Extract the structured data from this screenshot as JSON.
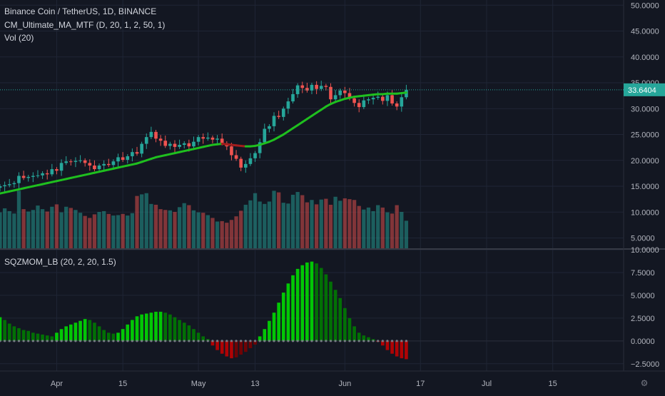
{
  "header": {
    "symbol_line": "Binance Coin / TetherUS, 1D, BINANCE",
    "indicator_ma": "CM_Ultimate_MA_MTF (D, 20, 1, 2, 50, 1)",
    "indicator_vol": "Vol (20)",
    "indicator_sqz": "SQZMOM_LB (20, 2, 20, 1.5)"
  },
  "colors": {
    "background": "#131722",
    "grid": "#1f2535",
    "up": "#26a69a",
    "down": "#ef5350",
    "ma_up": "#1fbf1f",
    "ma_down": "#a31d1d",
    "last_price_badge": "#26a69a",
    "sqz_lime": "#00e600",
    "sqz_green": "#008000",
    "sqz_red": "#cc0000",
    "sqz_maroon": "#800000"
  },
  "chart_data": [
    {
      "type": "candlestick",
      "title": "Binance Coin / TetherUS, 1D, BINANCE",
      "y_ticks": [
        "50.0000",
        "45.0000",
        "40.0000",
        "35.0000",
        "30.0000",
        "25.0000",
        "20.0000",
        "15.0000",
        "10.0000",
        "5.0000"
      ],
      "ylim": [
        3,
        51
      ],
      "last_price": "33.6404",
      "x_ticks": [
        {
          "label": "Apr",
          "day": 12
        },
        {
          "label": "15",
          "day": 26
        },
        {
          "label": "May",
          "day": 42
        },
        {
          "label": "13",
          "day": 54
        },
        {
          "label": "Jun",
          "day": 73
        },
        {
          "label": "17",
          "day": 89
        },
        {
          "label": "Jul",
          "day": 103
        },
        {
          "label": "15",
          "day": 117
        }
      ],
      "x_range": [
        0,
        132
      ],
      "ohlc_start_day": 0,
      "close": [
        15.0,
        15.2,
        15.4,
        15.6,
        17.0,
        16.6,
        16.8,
        17.0,
        17.1,
        17.5,
        17.3,
        18.3,
        18.0,
        19.5,
        19.8,
        19.7,
        19.9,
        20.0,
        19.5,
        19.0,
        18.3,
        19.0,
        19.3,
        19.1,
        19.8,
        20.6,
        20.1,
        20.8,
        21.6,
        21.3,
        23.2,
        24.5,
        25.5,
        24.2,
        23.8,
        22.8,
        23.2,
        22.6,
        23.0,
        23.3,
        22.7,
        23.6,
        24.5,
        24.2,
        24.4,
        24.0,
        24.2,
        23.3,
        22.7,
        21.0,
        20.3,
        18.6,
        19.3,
        20.4,
        21.4,
        23.5,
        26.1,
        26.6,
        28.6,
        28.4,
        30.0,
        31.4,
        32.8,
        34.5,
        34.0,
        33.5,
        34.6,
        33.8,
        34.4,
        34.2,
        31.8,
        32.6,
        33.5,
        33.0,
        32.0,
        31.1,
        30.3,
        31.6,
        31.8,
        32.1,
        32.3,
        31.5,
        32.6,
        31.0,
        30.4,
        32.2,
        33.6
      ],
      "volume": [
        9.0,
        10.0,
        9.3,
        8.7,
        14.4,
        9.8,
        9.2,
        9.6,
        10.7,
        9.8,
        9.2,
        10.4,
        11.0,
        9.0,
        10.4,
        10.1,
        9.6,
        8.9,
        8.1,
        7.6,
        8.5,
        9.1,
        9.3,
        8.6,
        8.2,
        8.3,
        8.6,
        8.2,
        8.8,
        13.1,
        13.5,
        13.8,
        11.1,
        10.9,
        9.8,
        9.6,
        9.5,
        9.1,
        10.3,
        11.3,
        10.8,
        9.5,
        9.0,
        8.9,
        8.3,
        7.6,
        6.7,
        6.8,
        6.4,
        7.1,
        8.0,
        9.4,
        10.9,
        12.0,
        13.8,
        11.7,
        11.1,
        11.7,
        14.4,
        14.0,
        11.4,
        11.2,
        13.4,
        14.1,
        13.3,
        11.5,
        12.1,
        11.0,
        12.2,
        12.4,
        10.9,
        12.9,
        11.9,
        12.5,
        12.3,
        12.1,
        10.6,
        9.7,
        10.2,
        9.3,
        10.8,
        10.2,
        9.0,
        8.7,
        10.8,
        9.1,
        6.9
      ],
      "ma": [
        13.6,
        13.8,
        14.0,
        14.2,
        14.4,
        14.6,
        14.8,
        15.0,
        15.2,
        15.4,
        15.6,
        15.8,
        16.0,
        16.2,
        16.4,
        16.6,
        16.8,
        17.0,
        17.2,
        17.4,
        17.6,
        17.8,
        18.0,
        18.2,
        18.4,
        18.6,
        18.8,
        19.0,
        19.2,
        19.4,
        19.7,
        20.0,
        20.3,
        20.6,
        20.8,
        21.0,
        21.2,
        21.4,
        21.6,
        21.8,
        22.0,
        22.2,
        22.4,
        22.6,
        22.8,
        23.0,
        23.1,
        23.2,
        23.1,
        23.0,
        22.9,
        22.8,
        22.7,
        22.7,
        22.8,
        23.0,
        23.3,
        23.6,
        24.0,
        24.5,
        25.0,
        25.6,
        26.2,
        26.8,
        27.4,
        28.0,
        28.6,
        29.2,
        29.8,
        30.4,
        30.9,
        31.3,
        31.6,
        31.9,
        32.1,
        32.3,
        32.4,
        32.5,
        32.6,
        32.7,
        32.8,
        32.8,
        32.9,
        32.9,
        32.9,
        33.0,
        33.1
      ],
      "ma_down_range": [
        47,
        52
      ]
    },
    {
      "type": "bar",
      "title": "SQZMOM_LB (20, 2, 20, 1.5)",
      "y_ticks": [
        "10.0000",
        "7.5000",
        "5.0000",
        "2.5000",
        "0.0000",
        "−2.5000"
      ],
      "ylim": [
        -3.3,
        10
      ],
      "start_day": 0,
      "values": [
        2.6,
        2.3,
        1.9,
        1.6,
        1.4,
        1.2,
        1.1,
        0.9,
        0.8,
        0.7,
        0.6,
        0.5,
        0.9,
        1.3,
        1.6,
        1.8,
        2.0,
        2.2,
        2.4,
        2.3,
        2.0,
        1.6,
        1.2,
        0.9,
        0.8,
        0.9,
        1.3,
        1.8,
        2.3,
        2.7,
        2.9,
        3.0,
        3.1,
        3.2,
        3.2,
        3.1,
        2.9,
        2.6,
        2.3,
        2.0,
        1.7,
        1.3,
        0.9,
        0.5,
        0.2,
        -0.5,
        -1.0,
        -1.4,
        -1.7,
        -1.9,
        -1.8,
        -1.5,
        -1.2,
        -0.8,
        -0.4,
        0.5,
        1.3,
        2.2,
        3.1,
        4.2,
        5.3,
        6.3,
        7.2,
        7.9,
        8.3,
        8.6,
        8.7,
        8.5,
        8.0,
        7.3,
        6.5,
        5.6,
        4.7,
        3.6,
        2.5,
        1.6,
        0.9,
        0.6,
        0.4,
        0.2,
        -0.1,
        -0.5,
        -1.0,
        -1.4,
        -1.7,
        -1.9,
        -2.0
      ]
    }
  ]
}
